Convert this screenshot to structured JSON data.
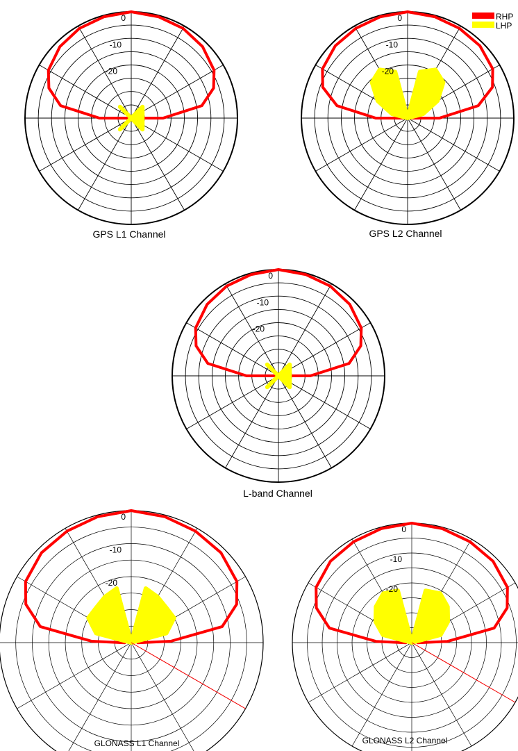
{
  "legend": [
    {
      "label": "RHP",
      "color": "#ff0000"
    },
    {
      "label": "LHP",
      "color": "#ffff00"
    }
  ],
  "chart_data": [
    {
      "type": "polar",
      "caption": "GPS L1 Channel",
      "ring_labels": [
        "0",
        "-10",
        "-20"
      ],
      "series": [
        {
          "color": "#ff0000",
          "x_deg": [
            -95,
            -90,
            -80,
            -70,
            -60,
            -45,
            -30,
            -15,
            0,
            15,
            30,
            45,
            60,
            70,
            80,
            90,
            95
          ],
          "y_db": [
            -40,
            -28,
            -13,
            -7,
            -4,
            -2,
            -1,
            -0.5,
            0,
            -0.5,
            -1,
            -2,
            -4,
            -7,
            -13,
            -28,
            -40
          ]
        },
        {
          "color": "#ffff00",
          "x_deg": [
            -135,
            -45,
            -45,
            135,
            45,
            -45,
            45,
            -135
          ],
          "y_db": [
            -40,
            -34,
            -40,
            -34,
            -34,
            -40,
            -40,
            -34
          ]
        }
      ]
    },
    {
      "type": "polar",
      "caption": "GPS L2 Channel",
      "ring_labels": [
        "0",
        "-10",
        "-20"
      ],
      "series": [
        {
          "color": "#ff0000",
          "x_deg": [
            -95,
            -90,
            -80,
            -70,
            -60,
            -45,
            -30,
            -15,
            0,
            15,
            30,
            45,
            60,
            70,
            80,
            90,
            95
          ],
          "y_db": [
            -40,
            -28,
            -13,
            -6,
            -3,
            -1.5,
            -1,
            -0.5,
            0,
            -0.5,
            -1,
            -1.5,
            -3,
            -6,
            -13,
            -28,
            -40
          ]
        },
        {
          "color": "#ffff00",
          "x_deg": [
            -90,
            -75,
            -60,
            -45,
            -30,
            -15,
            0,
            15,
            30,
            45,
            60,
            75,
            90
          ],
          "y_db": [
            -40,
            -34,
            -27,
            -21,
            -19,
            -22,
            -40,
            -22,
            -19,
            -21,
            -27,
            -34,
            -40
          ]
        }
      ]
    },
    {
      "type": "polar",
      "caption": "L-band Channel",
      "ring_labels": [
        "0",
        "-10",
        "-20"
      ],
      "series": [
        {
          "color": "#ff0000",
          "x_deg": [
            -95,
            -90,
            -80,
            -70,
            -60,
            -45,
            -30,
            -15,
            0,
            15,
            30,
            45,
            60,
            70,
            80,
            90,
            95
          ],
          "y_db": [
            -40,
            -28,
            -13,
            -7,
            -4,
            -2,
            -1,
            -0.5,
            0,
            -0.5,
            -1,
            -2,
            -4,
            -7,
            -13,
            -28,
            -40
          ]
        },
        {
          "color": "#ffff00",
          "x_deg": [
            -135,
            -45,
            -45,
            135,
            45,
            -45,
            45,
            -135
          ],
          "y_db": [
            -40,
            -34,
            -40,
            -34,
            -34,
            -40,
            -40,
            -34
          ]
        }
      ]
    },
    {
      "type": "polar",
      "caption": "GLONASS L1 Channel",
      "ring_labels": [
        "0",
        "-10",
        "-20"
      ],
      "series": [
        {
          "color": "#ff0000",
          "x_deg": [
            -92,
            -88,
            -80,
            -70,
            -60,
            -45,
            -30,
            -15,
            0,
            15,
            30,
            45,
            60,
            70,
            80,
            88,
            92
          ],
          "y_db": [
            -38,
            -28,
            -12,
            -6,
            -3,
            -1.5,
            -1,
            -0.5,
            0,
            -0.5,
            -1,
            -1.5,
            -3,
            -6,
            -12,
            -28,
            -38
          ]
        },
        {
          "color": "#ffff00",
          "x_deg": [
            -90,
            -75,
            -60,
            -45,
            -30,
            -15,
            0,
            15,
            30,
            45,
            60,
            75,
            90
          ],
          "y_db": [
            -40,
            -29,
            -25,
            -25,
            -24,
            -23,
            -40,
            -23,
            -24,
            -25,
            -25,
            -29,
            -40
          ]
        },
        {
          "color": "#ff0000",
          "x_deg": [
            120
          ],
          "y_db": [
            0
          ],
          "kind": "radial"
        }
      ]
    },
    {
      "type": "polar",
      "caption": "GLONASS L2 Channel",
      "ring_labels": [
        "0",
        "-10",
        "-20"
      ],
      "series": [
        {
          "color": "#ff0000",
          "x_deg": [
            -92,
            -88,
            -80,
            -70,
            -60,
            -45,
            -30,
            -15,
            0,
            15,
            30,
            45,
            60,
            70,
            80,
            88,
            92
          ],
          "y_db": [
            -38,
            -28,
            -12,
            -6,
            -3,
            -1.5,
            -1,
            -0.5,
            0,
            -0.5,
            -1,
            -1.5,
            -3,
            -6,
            -12,
            -28,
            -38
          ]
        },
        {
          "color": "#ffff00",
          "x_deg": [
            -90,
            -75,
            -60,
            -45,
            -30,
            -15,
            0,
            15,
            30,
            45,
            60,
            75,
            90
          ],
          "y_db": [
            -40,
            -30,
            -26,
            -23,
            -21,
            -22,
            -40,
            -22,
            -21,
            -23,
            -26,
            -30,
            -40
          ]
        },
        {
          "color": "#ff0000",
          "x_deg": [
            120
          ],
          "y_db": [
            0
          ],
          "kind": "radial"
        }
      ]
    }
  ]
}
